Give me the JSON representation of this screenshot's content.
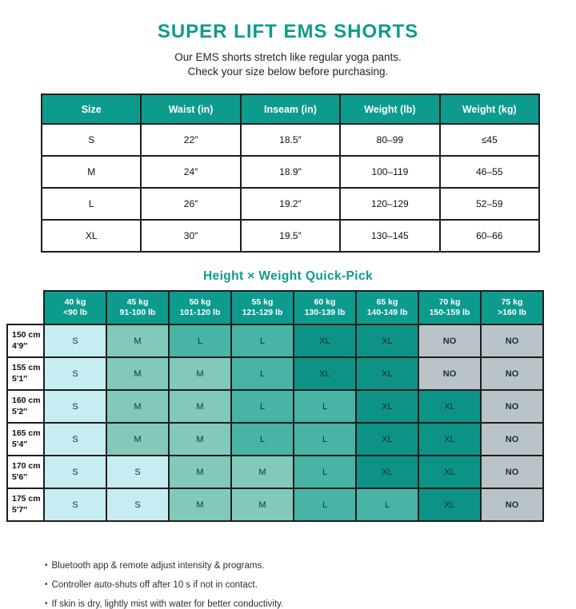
{
  "title": "SUPER LIFT EMS SHORTS",
  "subtitle": {
    "line1": "Our EMS shorts stretch like regular yoga pants.",
    "line2": "Check your size below before purchasing."
  },
  "colors": {
    "accent_teal": "#0d9b8e",
    "cell_s": "#c6edf1",
    "cell_m": "#82c9bc",
    "cell_l": "#48b4a6",
    "cell_xl": "#0c9386",
    "cell_no": "#b9c3c8",
    "border": "#1d1d1d"
  },
  "size_table": {
    "headers": [
      "Size",
      "Waist (in)",
      "Inseam (in)",
      "Weight (lb)",
      "Weight (kg)"
    ],
    "rows": [
      [
        "S",
        "22″",
        "18.5″",
        "80–99",
        "≤45"
      ],
      [
        "M",
        "24″",
        "18.9″",
        "100–119",
        "46–55"
      ],
      [
        "L",
        "26″",
        "19.2″",
        "120–129",
        "52–59"
      ],
      [
        "XL",
        "30″",
        "19.5″",
        "130–145",
        "60–66"
      ]
    ]
  },
  "quickpick": {
    "heading": "Height × Weight Quick-Pick",
    "col_headers": [
      [
        "40 kg",
        "<90 lb"
      ],
      [
        "45 kg",
        "91-100 lb"
      ],
      [
        "50 kg",
        "101-120 lb"
      ],
      [
        "55 kg",
        "121-129 lb"
      ],
      [
        "60 kg",
        "130-139 lb"
      ],
      [
        "65 kg",
        "140-149 lb"
      ],
      [
        "70 kg",
        "150-159 lb"
      ],
      [
        "75 kg",
        ">160 lb"
      ]
    ],
    "rows": [
      {
        "height_cm": "150 cm",
        "height_ft": "4'9″",
        "cells": [
          "S",
          "M",
          "L",
          "L",
          "XL",
          "XL",
          "NO",
          "NO"
        ]
      },
      {
        "height_cm": "155 cm",
        "height_ft": "5'1″",
        "cells": [
          "S",
          "M",
          "M",
          "L",
          "XL",
          "XL",
          "NO",
          "NO"
        ]
      },
      {
        "height_cm": "160 cm",
        "height_ft": "5'2″",
        "cells": [
          "S",
          "M",
          "M",
          "L",
          "L",
          "XL",
          "XL",
          "NO"
        ]
      },
      {
        "height_cm": "165 cm",
        "height_ft": "5'4″",
        "cells": [
          "S",
          "M",
          "M",
          "L",
          "L",
          "XL",
          "XL",
          "NO"
        ]
      },
      {
        "height_cm": "170 cm",
        "height_ft": "5'6″",
        "cells": [
          "S",
          "S",
          "M",
          "M",
          "L",
          "XL",
          "XL",
          "NO"
        ]
      },
      {
        "height_cm": "175 cm",
        "height_ft": "5'7″",
        "cells": [
          "S",
          "S",
          "M",
          "M",
          "L",
          "L",
          "XL",
          "NO"
        ]
      }
    ]
  },
  "notes": [
    "Bluetooth app & remote adjust intensity & programs.",
    "Controller auto-shuts off after 10 s if not in contact.",
    "If skin is dry, lightly mist with water for better conductivity."
  ]
}
